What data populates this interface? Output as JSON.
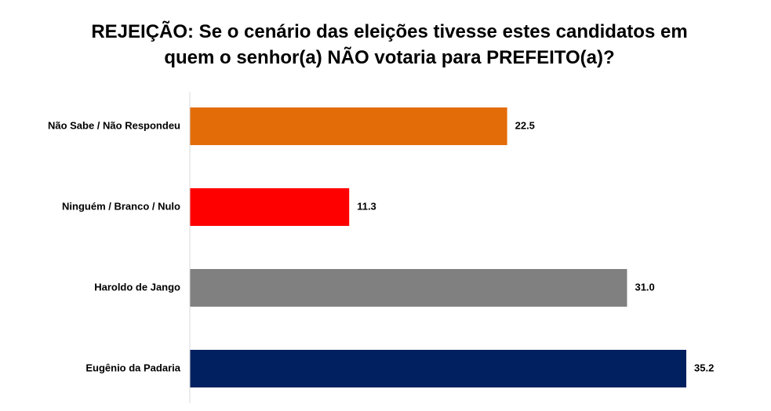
{
  "chart_data": {
    "type": "bar",
    "orientation": "horizontal",
    "title_lines": [
      "REJEIÇÃO: Se o cenário das eleições tivesse estes candidatos em",
      "quem o senhor(a) NÃO votaria para PREFEITO(a)?"
    ],
    "categories": [
      "Não Sabe / Não Respondeu",
      "Ninguém / Branco / Nulo",
      "Haroldo de Jango",
      "Eugênio da Padaria"
    ],
    "values": [
      22.5,
      11.3,
      31.0,
      35.2
    ],
    "value_labels": [
      "22.5",
      "11.3",
      "31.0",
      "35.2"
    ],
    "colors": [
      "#E36C09",
      "#FF0000",
      "#808080",
      "#002060"
    ],
    "xlim": [
      0,
      35.2
    ],
    "grid": false,
    "legend": "none"
  }
}
